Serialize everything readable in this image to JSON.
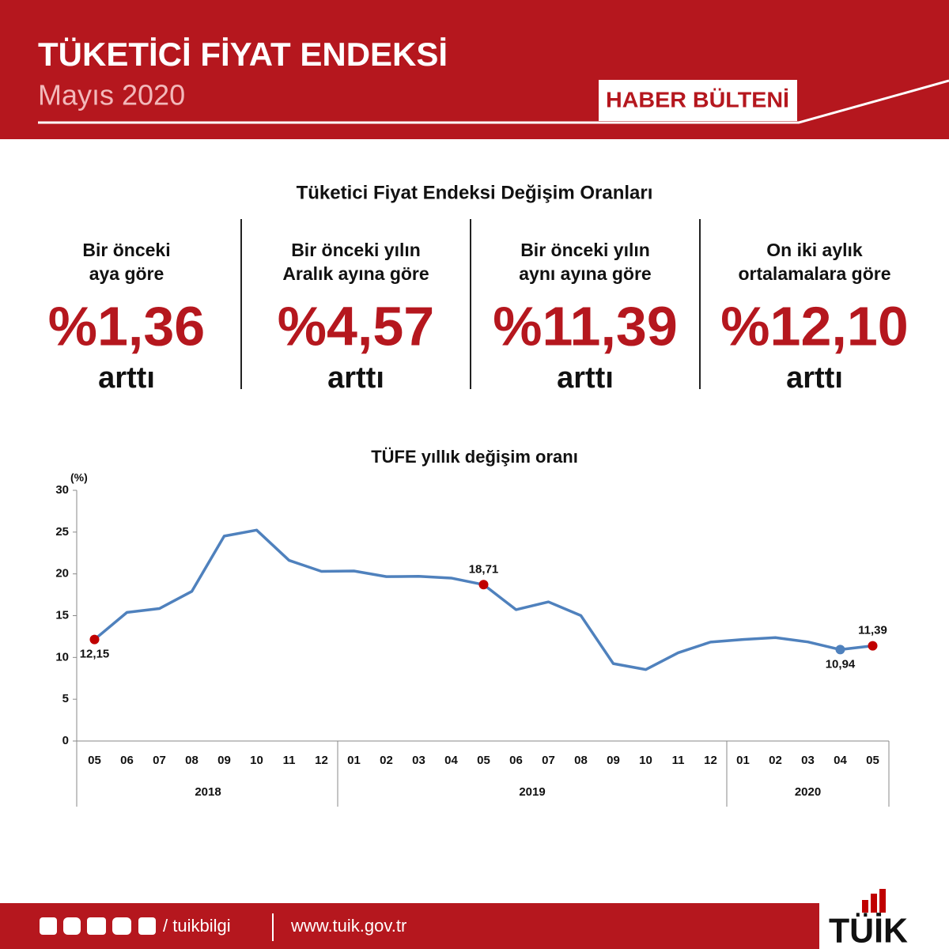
{
  "header": {
    "title": "TÜKETİCİ FİYAT ENDEKSİ",
    "subtitle": "Mayıs 2020",
    "badge": "HABER BÜLTENİ"
  },
  "summary": {
    "title": "Tüketici Fiyat Endeksi Değişim Oranları",
    "items": [
      {
        "label_lines": [
          "Bir önceki",
          "aya göre"
        ],
        "value": "%1,36",
        "note": "arttı"
      },
      {
        "label_lines": [
          "Bir önceki yılın",
          "Aralık ayına göre"
        ],
        "value": "%4,57",
        "note": "arttı"
      },
      {
        "label_lines": [
          "Bir önceki yılın",
          "aynı ayına göre"
        ],
        "value": "%11,39",
        "note": "arttı"
      },
      {
        "label_lines": [
          "On iki aylık",
          "ortalamalara göre"
        ],
        "value": "%12,10",
        "note": "arttı"
      }
    ]
  },
  "chart_data": {
    "type": "line",
    "title": "TÜFE yıllık değişim oranı",
    "y_label": "(%)",
    "categories": [
      "05",
      "06",
      "07",
      "08",
      "09",
      "10",
      "11",
      "12",
      "01",
      "02",
      "03",
      "04",
      "05",
      "06",
      "07",
      "08",
      "09",
      "10",
      "11",
      "12",
      "01",
      "02",
      "03",
      "04",
      "05"
    ],
    "category_groups": [
      "2018",
      "2019",
      "2020"
    ],
    "values": [
      12.15,
      15.39,
      15.85,
      17.9,
      24.52,
      25.24,
      21.62,
      20.3,
      20.35,
      19.67,
      19.71,
      19.5,
      18.71,
      15.72,
      16.65,
      15.01,
      9.26,
      8.55,
      10.56,
      11.84,
      12.15,
      12.37,
      11.86,
      10.94,
      11.39
    ],
    "value_labels": [
      "12,15",
      null,
      null,
      null,
      null,
      null,
      null,
      null,
      null,
      null,
      null,
      null,
      "18,71",
      null,
      null,
      null,
      null,
      null,
      null,
      null,
      null,
      null,
      null,
      "10,94",
      "11,39"
    ],
    "marker_colors": [
      "#c00000",
      null,
      null,
      null,
      null,
      null,
      null,
      null,
      null,
      null,
      null,
      null,
      "#c00000",
      null,
      null,
      null,
      null,
      null,
      null,
      null,
      null,
      null,
      null,
      "#4f81bd",
      "#c00000"
    ],
    "color": "#4f81bd",
    "ylim": [
      0,
      30
    ],
    "yticks": [
      0,
      5,
      10,
      15,
      20,
      25,
      30
    ],
    "grid": false
  },
  "footer": {
    "handle": "/ tuikbilgi",
    "website": "www.tuik.gov.tr",
    "logo": "TÜİK"
  }
}
